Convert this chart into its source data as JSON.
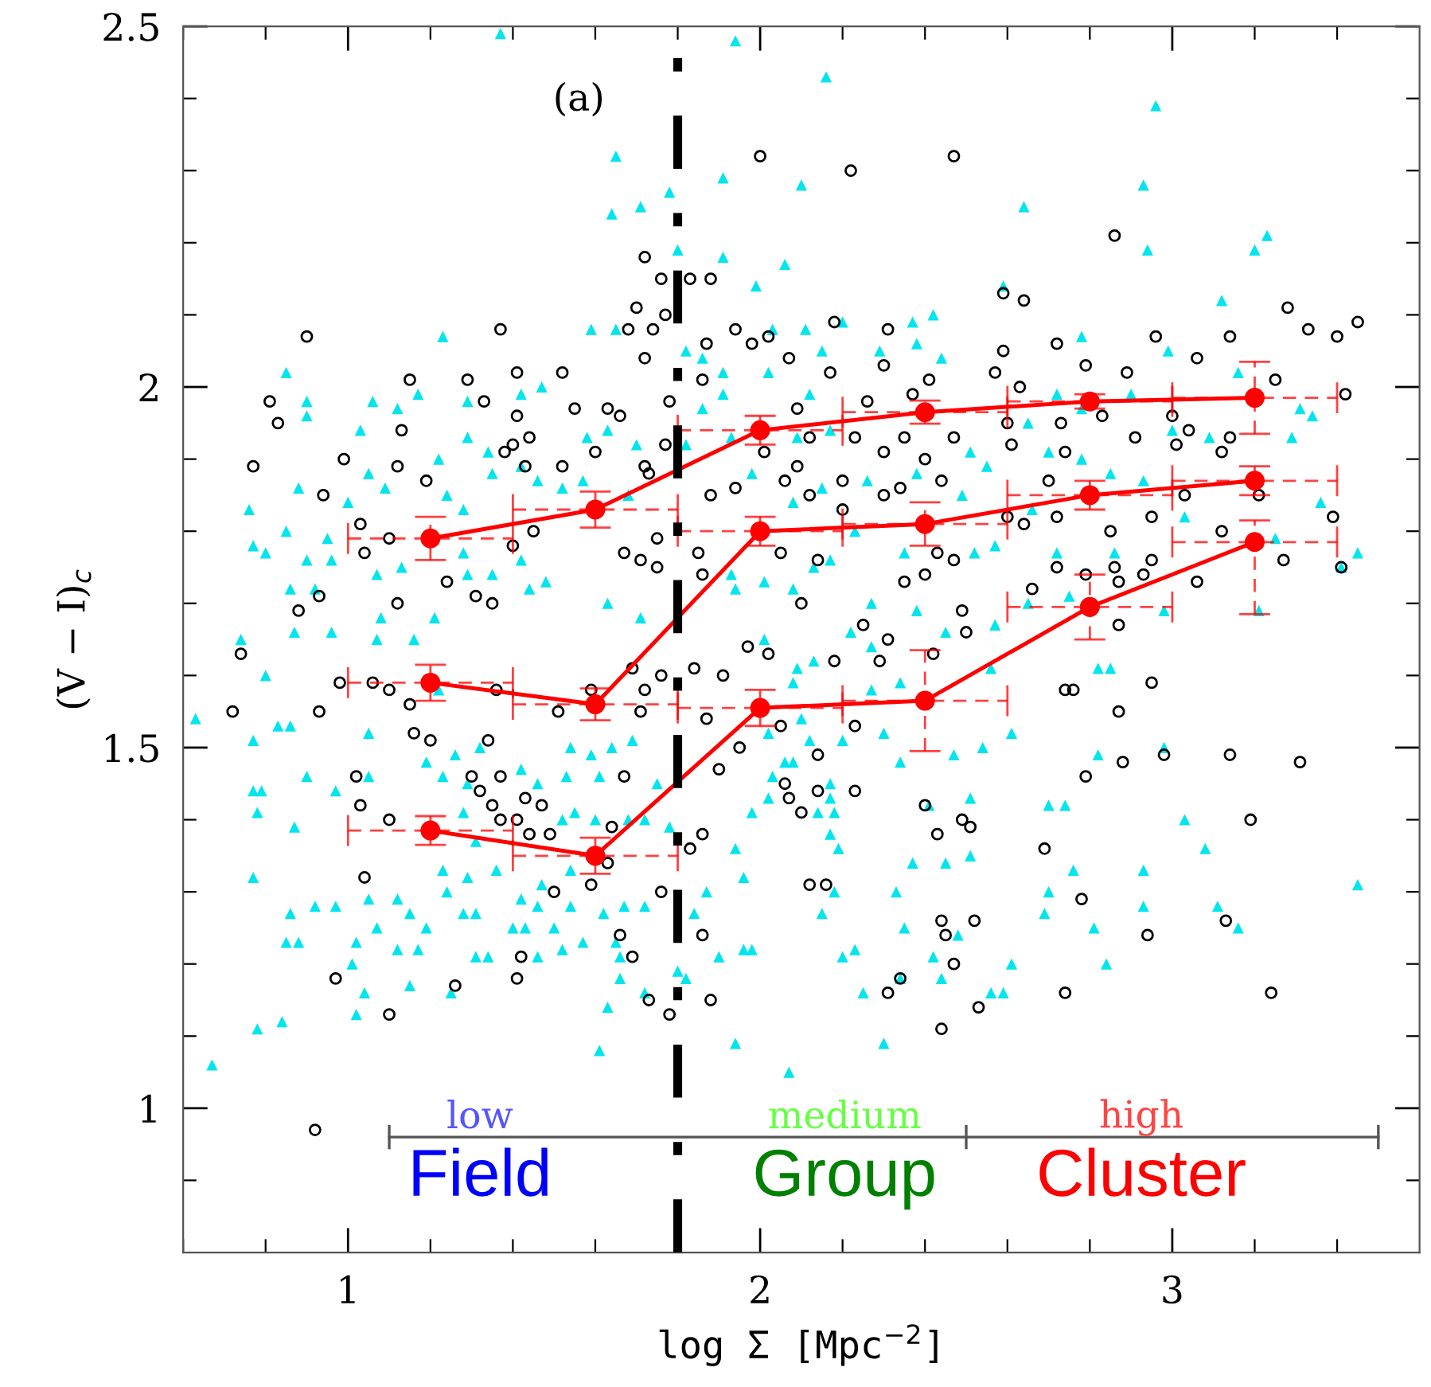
{
  "chart_data": {
    "type": "scatter",
    "xlabel": "log Σ [Mpc$^{−2}$]",
    "ylabel": "(V − I)$_{c}$",
    "xlim": [
      0.6,
      3.6
    ],
    "ylim": [
      0.8,
      2.5
    ],
    "xticks": [
      {
        "value": 0.6,
        "label": null
      },
      {
        "value": 0.8,
        "label": null
      },
      1,
      {
        "value": 1.2,
        "label": null
      },
      {
        "value": 1.4,
        "label": null
      },
      {
        "value": 1.6,
        "label": null
      },
      {
        "value": 1.8,
        "label": null
      },
      2,
      {
        "value": 2.2,
        "label": null
      },
      {
        "value": 2.4,
        "label": null
      },
      {
        "value": 2.6,
        "label": null
      },
      {
        "value": 2.8,
        "label": null
      },
      3,
      {
        "value": 3.2,
        "label": null
      },
      {
        "value": 3.4,
        "label": null
      }
    ],
    "yticks": [
      {
        "value": 0.9,
        "label": null
      },
      1,
      {
        "value": 1.1,
        "label": null
      },
      {
        "value": 1.2,
        "label": null
      },
      {
        "value": 1.3,
        "label": null
      },
      {
        "value": 1.4,
        "label": null
      },
      1.5,
      {
        "value": 1.6,
        "label": null
      },
      {
        "value": 1.7,
        "label": null
      },
      {
        "value": 1.8,
        "label": null
      },
      {
        "value": 1.9,
        "label": null
      },
      2,
      {
        "value": 2.1,
        "label": null
      },
      {
        "value": 2.2,
        "label": null
      },
      {
        "value": 2.3,
        "label": null
      },
      {
        "value": 2.4,
        "label": null
      },
      2.5
    ],
    "grid": false,
    "legend": false,
    "annotations": [
      "(a)",
      "low",
      "Field",
      "medium",
      "Group",
      "high",
      "Cluster"
    ],
    "ref_lines": [
      {
        "axis": "x",
        "value": 1.8,
        "label": null,
        "color": "#000000",
        "line_style": "dashdot"
      }
    ],
    "series": [
      {
        "marker": "triangle",
        "color": "#00e5ee",
        "x": [
          1.37,
          1.65,
          1.91,
          1.78,
          1.64,
          1.71,
          1.8,
          1.91,
          1.59,
          1.65,
          1.23,
          0.85,
          0.9,
          0.9,
          1.06,
          1.12,
          1.17,
          1.29,
          1.42,
          1.47,
          1.03,
          0.88,
          0.76,
          0.77,
          0.8,
          0.85,
          0.95,
          1.0,
          1.05,
          1.09,
          1.22,
          1.29,
          1.34,
          1.42,
          1.46,
          1.24,
          1.28,
          1.35,
          1.58,
          1.63,
          1.57,
          1.52,
          1.7,
          1.68,
          1.82,
          1.86,
          1.91,
          1.91,
          1.86,
          1.93,
          1.82,
          0.9,
          0.96,
          1.07,
          1.13,
          1.28,
          1.29,
          1.35,
          1.42,
          1.48,
          1.63,
          1.71,
          1.93,
          1.94,
          0.86,
          0.92,
          1.08,
          1.21,
          1.44,
          1.94,
          2.16,
          2.96,
          2.1,
          2.93,
          2.64,
          2.06,
          2.94,
          3.2,
          3.23,
          1.99,
          2.59,
          3.12,
          2.03,
          2.2,
          2.37,
          2.42,
          2.78,
          2.11,
          2.15,
          2.38,
          2.44,
          2.99,
          3.16,
          2.02,
          2.12,
          2.29,
          2.72,
          2.9,
          3.31,
          3.34,
          2.65,
          2.78,
          3.0,
          3.09,
          3.29,
          2.17,
          2.09,
          2.51,
          2.55,
          2.7,
          2.78,
          1.98,
          2.08,
          2.15,
          2.26,
          2.38,
          2.49,
          2.66,
          2.85,
          2.93,
          3.03,
          3.36,
          3.45,
          3.41,
          3.25,
          3.21,
          2.98,
          2.86,
          2.72,
          2.57,
          2.52,
          2.35,
          2.27,
          2.17,
          2.01,
          2.38,
          2.65,
          2.75,
          2.13,
          2.08,
          2.23,
          0.74,
          0.8,
          0.87,
          0.96,
          0.63,
          0.77,
          0.83,
          0.86,
          0.77,
          0.79,
          0.78,
          0.87,
          0.9,
          0.97,
          1.05,
          1.05,
          1.07,
          1.16,
          1.22,
          1.19,
          1.23,
          1.26,
          1.32,
          1.29,
          1.28,
          1.31,
          1.42,
          1.46,
          1.53,
          1.61,
          1.54,
          1.59,
          1.55,
          1.52,
          1.6,
          1.64,
          1.69,
          1.75,
          1.72,
          1.68,
          1.78,
          0.77,
          0.86,
          0.85,
          0.88,
          0.92,
          0.97,
          1.05,
          1.12,
          1.02,
          1.07,
          1.15,
          1.17,
          1.19,
          1.12,
          1.23,
          1.24,
          1.29,
          1.28,
          1.31,
          1.36,
          1.42,
          1.43,
          1.46,
          1.4,
          1.31,
          1.34,
          1.46,
          1.52,
          1.57,
          1.5,
          1.54,
          1.62,
          1.65,
          1.67,
          1.72,
          1.66,
          1.66,
          1.63,
          1.72,
          1.8,
          1.82,
          1.61,
          1.94,
          1.96,
          1.54,
          1.47,
          1.15,
          1.25,
          1.04,
          1.02,
          0.84,
          0.78,
          0.67,
          1.01,
          1.94,
          1.96,
          1.87,
          1.84,
          1.9,
          2.07,
          2.3,
          2.25,
          2.2,
          2.23,
          2.42,
          2.44,
          2.34,
          2.56,
          2.59,
          2.61,
          2.84,
          2.35,
          2.48,
          2.15,
          2.18,
          2.33,
          2.37,
          2.45,
          2.51,
          2.19,
          2.17,
          1.98,
          2.7,
          2.69,
          2.76,
          2.81,
          2.93,
          2.93,
          3.11,
          3.16,
          3.08,
          3.03,
          3.45,
          2.7,
          2.74,
          2.98,
          2.82,
          2.82,
          2.85,
          2.61,
          2.54,
          2.47,
          2.34,
          2.51,
          2.41,
          2.3,
          2.34,
          2.27,
          2.12,
          2.2,
          2.02,
          2.1,
          2.03,
          2.17,
          2.17,
          2.02,
          1.98,
          2.14,
          2.18,
          2.06,
          2.08,
          2.56,
          2.27,
          2.13,
          2.09,
          2.08,
          2.01,
          2.22,
          2.45,
          2.57
        ],
        "values": [
          2.49,
          2.32,
          2.29,
          2.27,
          2.24,
          2.25,
          2.19,
          2.18,
          2.08,
          2.08,
          2.07,
          2.02,
          1.98,
          1.96,
          1.98,
          1.97,
          1.99,
          1.98,
          1.99,
          2.0,
          1.94,
          1.86,
          1.83,
          1.78,
          1.77,
          1.8,
          1.79,
          1.84,
          1.88,
          1.86,
          1.9,
          1.93,
          1.91,
          1.89,
          1.87,
          1.85,
          1.83,
          1.88,
          1.93,
          1.94,
          1.87,
          1.86,
          1.92,
          1.85,
          2.05,
          2.04,
          2.02,
          1.99,
          1.97,
          1.93,
          1.92,
          1.76,
          1.76,
          1.74,
          1.75,
          1.77,
          1.74,
          1.74,
          1.76,
          1.73,
          1.7,
          1.68,
          1.74,
          1.72,
          1.72,
          1.72,
          1.68,
          1.68,
          1.72,
          2.48,
          2.43,
          2.39,
          2.28,
          2.28,
          2.25,
          2.17,
          2.19,
          2.19,
          2.21,
          2.14,
          2.14,
          2.12,
          2.08,
          2.09,
          2.09,
          2.1,
          2.07,
          2.08,
          2.05,
          2.06,
          2.04,
          2.05,
          2.02,
          2.02,
          1.99,
          2.05,
          1.99,
          1.99,
          1.97,
          1.96,
          1.95,
          1.97,
          1.94,
          1.93,
          1.93,
          1.94,
          1.93,
          1.91,
          1.89,
          1.91,
          1.9,
          1.88,
          1.84,
          1.86,
          1.87,
          1.88,
          1.85,
          1.83,
          1.88,
          1.87,
          1.82,
          1.84,
          1.77,
          1.75,
          1.79,
          1.69,
          1.69,
          1.77,
          1.77,
          1.78,
          1.77,
          1.77,
          1.7,
          1.76,
          1.73,
          1.69,
          1.7,
          1.71,
          1.75,
          1.72,
          1.8,
          1.65,
          1.6,
          1.66,
          1.66,
          1.54,
          1.51,
          1.53,
          1.53,
          1.44,
          1.44,
          1.41,
          1.39,
          1.46,
          1.44,
          1.52,
          1.46,
          1.65,
          1.65,
          1.58,
          1.48,
          1.46,
          1.49,
          1.5,
          1.45,
          1.41,
          1.37,
          1.47,
          1.45,
          1.46,
          1.46,
          1.5,
          1.49,
          1.41,
          1.4,
          1.4,
          1.5,
          1.51,
          1.45,
          1.4,
          1.4,
          1.39,
          1.32,
          1.27,
          1.23,
          1.23,
          1.28,
          1.28,
          1.29,
          1.29,
          1.23,
          1.25,
          1.27,
          1.22,
          1.25,
          1.22,
          1.33,
          1.3,
          1.32,
          1.27,
          1.27,
          1.33,
          1.29,
          1.25,
          1.28,
          1.25,
          1.21,
          1.21,
          1.21,
          1.22,
          1.23,
          1.25,
          1.28,
          1.27,
          1.23,
          1.28,
          1.28,
          1.21,
          1.18,
          1.14,
          1.16,
          1.19,
          1.18,
          1.08,
          1.09,
          1.22,
          1.33,
          1.31,
          1.17,
          1.16,
          1.16,
          1.13,
          1.12,
          1.11,
          1.06,
          1.2,
          1.36,
          1.32,
          1.3,
          1.27,
          1.21,
          1.05,
          1.09,
          1.16,
          1.21,
          1.22,
          1.21,
          1.18,
          1.18,
          1.16,
          1.16,
          1.2,
          1.2,
          1.25,
          1.24,
          1.27,
          1.3,
          1.3,
          1.34,
          1.34,
          1.35,
          1.36,
          1.38,
          1.22,
          1.3,
          1.27,
          1.33,
          1.25,
          1.33,
          1.28,
          1.28,
          1.25,
          1.36,
          1.4,
          1.31,
          1.42,
          1.42,
          1.5,
          1.49,
          1.61,
          1.61,
          1.52,
          1.5,
          1.49,
          1.48,
          1.43,
          1.42,
          1.52,
          1.59,
          1.58,
          1.51,
          1.51,
          1.52,
          1.54,
          1.46,
          1.45,
          1.43,
          1.43,
          1.41,
          1.41,
          1.41,
          1.48,
          1.48,
          1.61,
          1.64,
          1.62,
          1.61,
          1.59,
          1.65,
          1.66,
          1.66,
          1.67
        ]
      },
      {
        "marker": "circle",
        "color": "#000000",
        "x": [
          0.9,
          0.77,
          0.81,
          0.83,
          0.94,
          0.99,
          1.03,
          1.1,
          1.04,
          1.15,
          1.13,
          1.12,
          1.19,
          1.29,
          1.33,
          1.41,
          1.41,
          1.37,
          1.4,
          1.44,
          1.38,
          1.43,
          1.52,
          1.55,
          1.6,
          1.52,
          1.45,
          1.4,
          1.24,
          1.31,
          1.35,
          1.12,
          0.88,
          0.93,
          1.72,
          1.76,
          1.83,
          1.88,
          1.7,
          1.77,
          1.68,
          1.74,
          1.72,
          1.86,
          1.78,
          1.63,
          1.66,
          1.77,
          1.72,
          1.73,
          1.75,
          1.67,
          1.71,
          1.85,
          1.86,
          1.75,
          1.94,
          1.87,
          1.98,
          2.0,
          1.88,
          1.94,
          2.22,
          2.47,
          2.86,
          2.64,
          2.59,
          3.28,
          3.33,
          3.4,
          3.45,
          3.14,
          2.96,
          2.72,
          2.59,
          2.18,
          2.02,
          2.31,
          2.07,
          2.17,
          2.3,
          2.41,
          2.57,
          2.79,
          2.89,
          3.06,
          3.25,
          3.42,
          2.37,
          2.63,
          2.09,
          2.26,
          2.6,
          2.73,
          2.83,
          3.0,
          3.04,
          2.01,
          2.12,
          2.23,
          2.35,
          2.47,
          2.91,
          3.01,
          3.14,
          3.12,
          2.61,
          2.74,
          2.09,
          2.3,
          2.4,
          2.06,
          2.2,
          2.34,
          2.44,
          2.7,
          2.12,
          2.3,
          2.2,
          2.6,
          2.64,
          2.72,
          2.85,
          2.95,
          3.03,
          3.12,
          3.39,
          3.21,
          3.27,
          3.41,
          3.06,
          2.93,
          2.86,
          2.87,
          2.72,
          2.66,
          2.49,
          2.35,
          2.4,
          2.43,
          2.47,
          2.14,
          2.05,
          2.1,
          2.25,
          2.95,
          2.79,
          0.74,
          0.72,
          0.93,
          0.98,
          1.06,
          1.1,
          1.15,
          1.16,
          1.2,
          1.34,
          1.02,
          1.03,
          1.1,
          1.04,
          1.3,
          1.37,
          1.32,
          1.35,
          1.43,
          1.47,
          1.37,
          1.41,
          1.44,
          1.49,
          1.36,
          1.51,
          1.59,
          1.63,
          1.59,
          1.5,
          1.76,
          1.69,
          1.72,
          1.71,
          1.76,
          1.67,
          1.64,
          1.86,
          1.83,
          1.84,
          1.91,
          1.87,
          1.95,
          1.9,
          1.97,
          1.66,
          1.69,
          1.86,
          1.88,
          1.73,
          1.78,
          1.42,
          1.41,
          1.26,
          1.1,
          0.97,
          0.92,
          2.31,
          2.02,
          2.18,
          2.29,
          2.42,
          2.5,
          2.87,
          2.05,
          2.23,
          2.14,
          2.06,
          2.14,
          2.07,
          2.1,
          2.23,
          2.4,
          2.43,
          2.49,
          2.51,
          2.12,
          2.16,
          2.44,
          2.45,
          2.52,
          2.47,
          2.34,
          2.31,
          2.44,
          2.53,
          2.74,
          2.69,
          2.78,
          2.94,
          3.13,
          3.24,
          3.19,
          2.88,
          2.79,
          2.98,
          3.14,
          3.31,
          2.74,
          2.76,
          2.87,
          2.95
        ],
        "values": [
          2.07,
          1.89,
          1.98,
          1.95,
          1.85,
          1.9,
          1.81,
          1.79,
          1.77,
          2.01,
          1.94,
          1.89,
          1.87,
          2.01,
          1.98,
          2.02,
          1.96,
          2.08,
          1.92,
          1.93,
          1.91,
          1.89,
          2.02,
          1.97,
          1.91,
          1.89,
          1.8,
          1.78,
          1.73,
          1.71,
          1.7,
          1.7,
          1.69,
          1.71,
          2.18,
          2.15,
          2.15,
          2.15,
          2.11,
          2.1,
          2.08,
          2.08,
          2.04,
          2.01,
          1.98,
          1.97,
          1.96,
          1.92,
          1.89,
          1.88,
          1.79,
          1.77,
          1.76,
          1.77,
          1.74,
          1.75,
          2.08,
          2.06,
          2.06,
          2.32,
          1.85,
          1.86,
          2.3,
          2.32,
          2.21,
          2.12,
          2.13,
          2.11,
          2.08,
          2.07,
          2.09,
          2.07,
          2.07,
          2.06,
          2.05,
          2.09,
          2.07,
          2.08,
          2.04,
          2.02,
          2.03,
          2.01,
          2.02,
          2.03,
          2.02,
          2.04,
          2.01,
          1.99,
          1.99,
          2.0,
          1.97,
          1.98,
          1.95,
          1.95,
          1.96,
          1.96,
          1.94,
          1.91,
          1.93,
          1.93,
          1.93,
          1.93,
          1.93,
          1.92,
          1.93,
          1.91,
          1.92,
          1.91,
          1.89,
          1.91,
          1.9,
          1.87,
          1.87,
          1.86,
          1.87,
          1.87,
          1.85,
          1.85,
          1.83,
          1.82,
          1.81,
          1.82,
          1.8,
          1.82,
          1.85,
          1.8,
          1.82,
          1.85,
          1.76,
          1.75,
          1.73,
          1.74,
          1.75,
          1.73,
          1.75,
          1.72,
          1.69,
          1.73,
          1.74,
          1.77,
          1.76,
          1.76,
          1.77,
          1.7,
          1.67,
          1.76,
          1.74,
          1.63,
          1.55,
          1.55,
          1.59,
          1.59,
          1.58,
          1.56,
          1.52,
          1.51,
          1.51,
          1.46,
          1.42,
          1.4,
          1.32,
          1.46,
          1.46,
          1.44,
          1.42,
          1.43,
          1.42,
          1.4,
          1.4,
          1.38,
          1.38,
          1.58,
          1.55,
          1.58,
          1.34,
          1.31,
          1.3,
          1.3,
          1.61,
          1.58,
          1.55,
          1.6,
          1.46,
          1.39,
          1.38,
          1.36,
          1.61,
          1.6,
          1.54,
          1.5,
          1.47,
          1.64,
          1.24,
          1.21,
          1.24,
          1.15,
          1.15,
          1.13,
          1.21,
          1.18,
          1.17,
          1.13,
          1.18,
          0.97,
          1.65,
          1.63,
          1.62,
          1.62,
          1.63,
          1.66,
          1.67,
          1.53,
          1.53,
          1.49,
          1.45,
          1.44,
          1.43,
          1.41,
          1.44,
          1.42,
          1.38,
          1.4,
          1.39,
          1.31,
          1.31,
          1.26,
          1.24,
          1.26,
          1.2,
          1.18,
          1.16,
          1.11,
          1.14,
          1.16,
          1.36,
          1.29,
          1.24,
          1.26,
          1.16,
          1.4,
          1.48,
          1.46,
          1.49,
          1.49,
          1.48,
          1.58,
          1.58,
          1.55,
          1.59
        ]
      },
      {
        "type": "line",
        "marker": "circle",
        "line_style": "solid",
        "color": "#ff0000",
        "x": [
          1.2,
          1.6,
          2.0,
          2.4,
          2.8,
          3.2
        ],
        "values": [
          1.79,
          1.83,
          1.94,
          1.965,
          1.98,
          1.985
        ],
        "errors": [
          0.03,
          0.025,
          0.02,
          0.016,
          0.01,
          0.05
        ],
        "xerrors": [
          0.2,
          0.2,
          0.2,
          0.2,
          0.2,
          0.2
        ]
      },
      {
        "type": "line",
        "marker": "circle",
        "line_style": "solid",
        "color": "#ff0000",
        "x": [
          1.2,
          1.6,
          2.0,
          2.4,
          2.8,
          3.2
        ],
        "values": [
          1.59,
          1.56,
          1.8,
          1.81,
          1.85,
          1.87
        ],
        "errors": [
          0.025,
          0.022,
          0.02,
          0.03,
          0.02,
          0.02
        ],
        "xerrors": [
          0.2,
          0.2,
          0.2,
          0.2,
          0.2,
          0.2
        ]
      },
      {
        "type": "line",
        "marker": "circle",
        "line_style": "solid",
        "color": "#ff0000",
        "x": [
          1.2,
          1.6,
          2.0,
          2.4,
          2.8,
          3.2
        ],
        "values": [
          1.385,
          1.35,
          1.555,
          1.565,
          1.695,
          1.785
        ],
        "errors": [
          0.02,
          0.025,
          0.025,
          0.07,
          0.045,
          [
            1.685,
            1.815
          ]
        ],
        "xerrors": [
          0.2,
          0.2,
          0.2,
          0.2,
          0.2,
          0.2
        ]
      }
    ]
  }
}
